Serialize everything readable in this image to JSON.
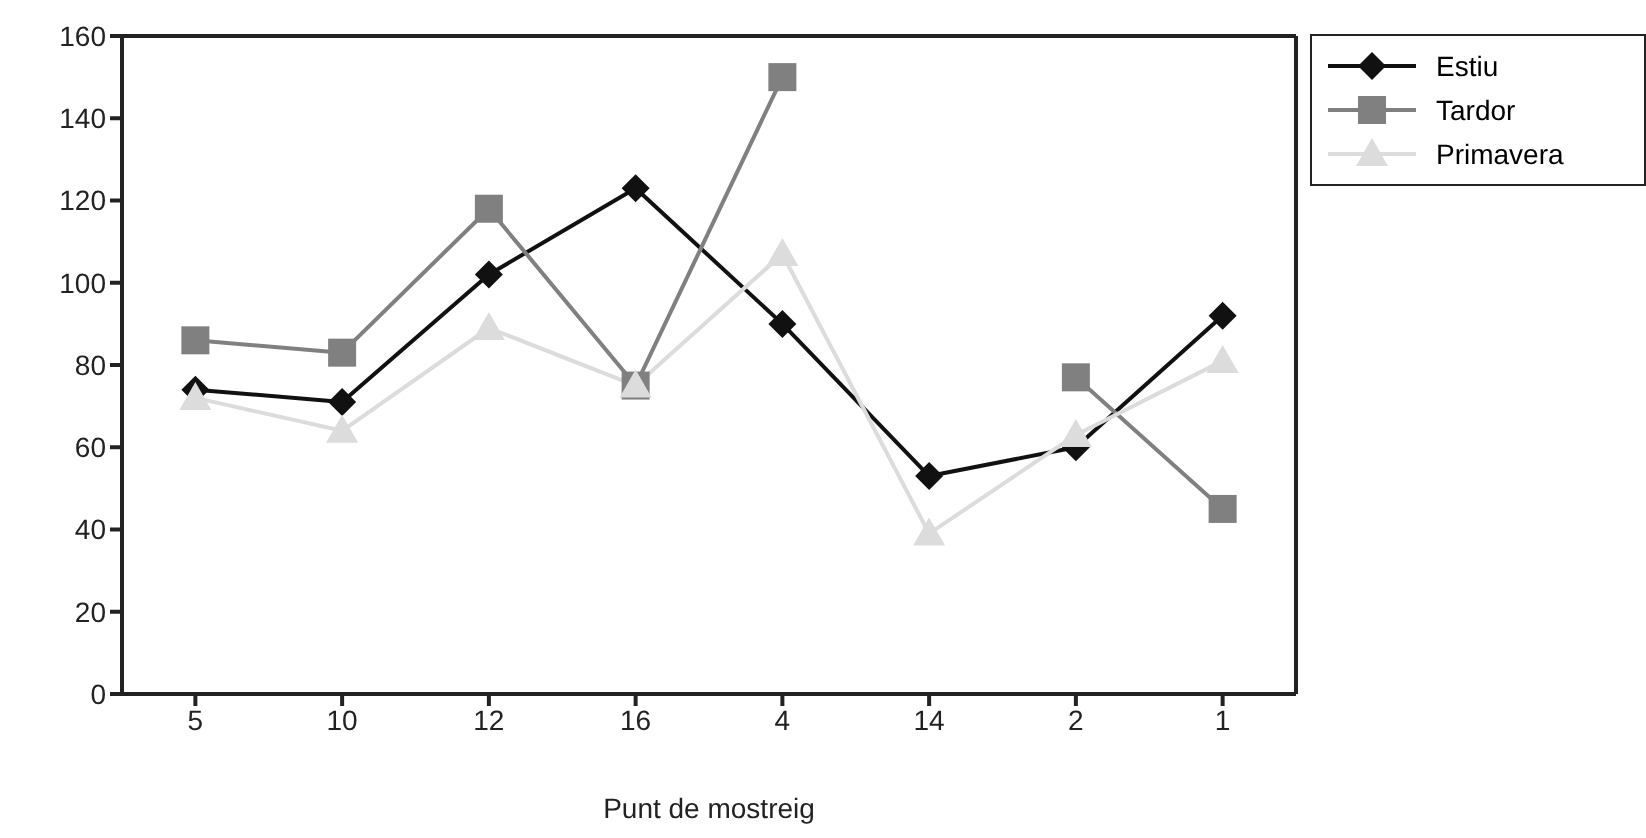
{
  "chart_data": {
    "type": "line",
    "xlabel": "Punt de mostreig",
    "categories": [
      "5",
      "10",
      "12",
      "16",
      "4",
      "14",
      "2",
      "1"
    ],
    "series": [
      {
        "name": "Estiu",
        "color": "#111111",
        "marker": "diamond",
        "values": [
          74,
          71,
          102,
          123,
          90,
          53,
          60,
          92
        ]
      },
      {
        "name": "Tardor",
        "color": "#808080",
        "marker": "square",
        "values": [
          86,
          83,
          118,
          75,
          150,
          null,
          77,
          45
        ]
      },
      {
        "name": "Primavera",
        "color": "#dcdcdc",
        "marker": "triangle",
        "values": [
          72,
          64,
          89,
          75,
          107,
          39,
          63,
          81
        ]
      }
    ],
    "ylim": [
      0,
      160
    ],
    "yticks": [
      0,
      20,
      40,
      60,
      80,
      100,
      120,
      140,
      160
    ],
    "grid": false,
    "legend": "top right",
    "line_style": "solid"
  }
}
